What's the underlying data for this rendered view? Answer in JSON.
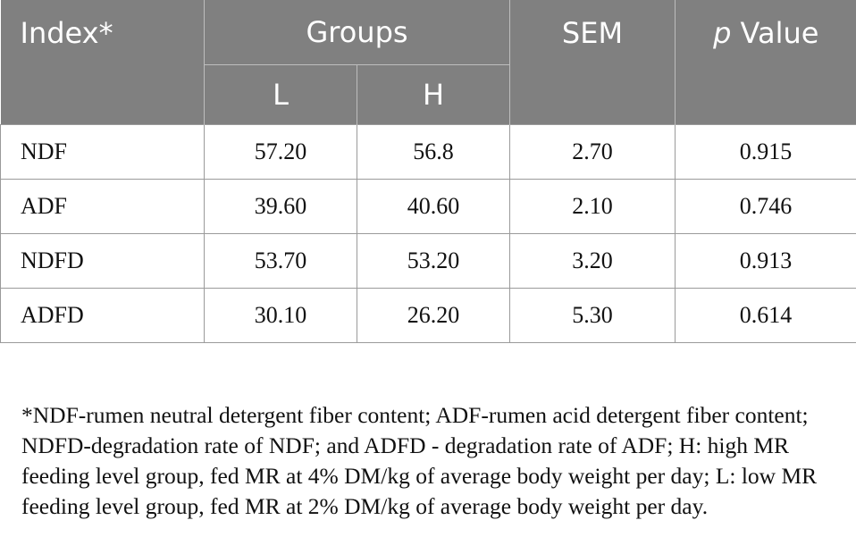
{
  "table": {
    "headers": {
      "index": "Index*",
      "groups": "Groups",
      "sem": "SEM",
      "p_italic": "p",
      "p_rest": " Value",
      "sub_l": "L",
      "sub_h": "H"
    },
    "rows": [
      {
        "index": "NDF",
        "l": "57.20",
        "h": "56.8",
        "sem": "2.70",
        "p": "0.915"
      },
      {
        "index": "ADF",
        "l": "39.60",
        "h": "40.60",
        "sem": "2.10",
        "p": "0.746"
      },
      {
        "index": "NDFD",
        "l": "53.70",
        "h": "53.20",
        "sem": "3.20",
        "p": "0.913"
      },
      {
        "index": "ADFD",
        "l": "30.10",
        "h": "26.20",
        "sem": "5.30",
        "p": "0.614"
      }
    ]
  },
  "footnote": "*NDF-rumen neutral detergent fiber content; ADF-rumen acid detergent fiber content; NDFD-degradation rate of NDF; and ADFD - degradation rate of ADF; H: high MR feeding level group, fed MR at 4% DM/kg of average body weight per day; L: low MR feeding level group, fed MR at 2% DM/kg of average body weight per day.",
  "colors": {
    "header_bg": "#808080",
    "header_text": "#ffffff",
    "grid": "#9a9a9a"
  }
}
